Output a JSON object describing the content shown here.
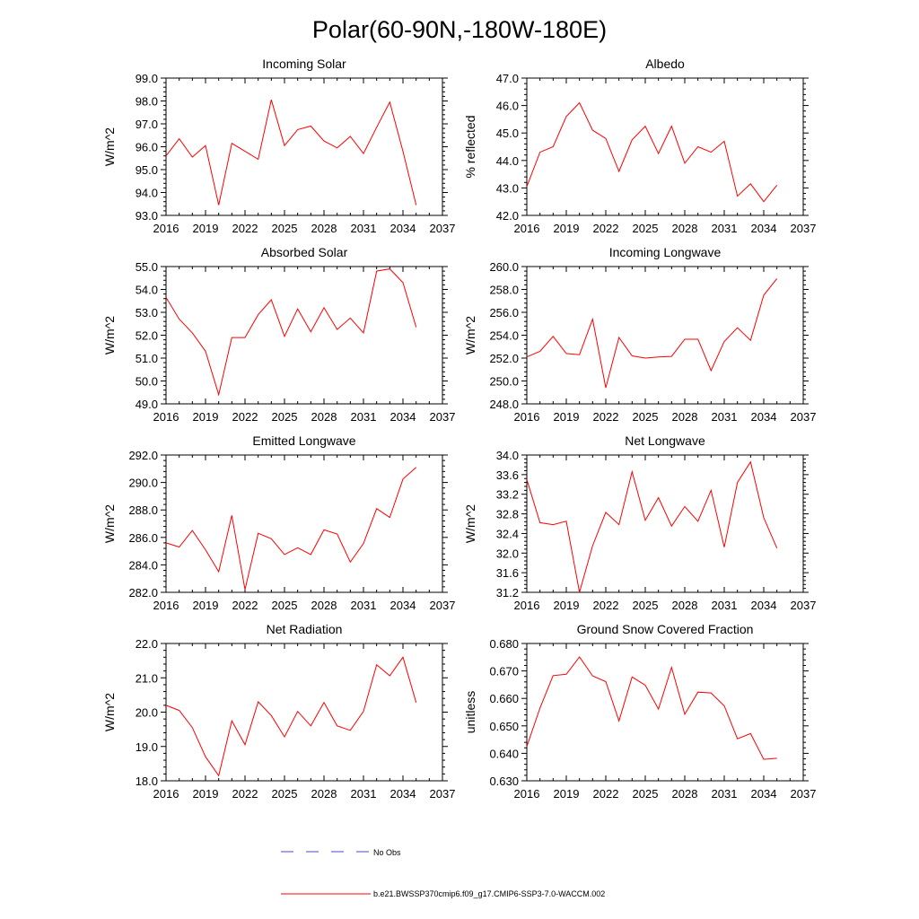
{
  "figure": {
    "title": "Polar(60-90N,-180W-180E)",
    "legend": [
      {
        "label": "No Obs",
        "color": "#4a4acc",
        "style": "dashed"
      },
      {
        "label": "b.e21.BWSSP370cmip6.f09_g17.CMIP6-SSP3-7.0-WACCM.002",
        "color": "#ff0000",
        "style": "solid"
      }
    ]
  },
  "chart_data": [
    {
      "type": "line",
      "title": "Incoming Solar",
      "xlabel": "",
      "ylabel": "W/m^2",
      "xlim": [
        2016,
        2037
      ],
      "ylim": [
        93.0,
        99.0
      ],
      "xticks": [
        2016,
        2019,
        2022,
        2025,
        2028,
        2031,
        2034,
        2037
      ],
      "yticks": [
        "93.0",
        "94.0",
        "95.0",
        "96.0",
        "97.0",
        "98.0",
        "99.0"
      ],
      "series": [
        {
          "name": "b.e21.BWSSP370cmip6.f09_g17.CMIP6-SSP3-7.0-WACCM.002",
          "color": "#ff0000",
          "x": [
            2016,
            2017,
            2018,
            2019,
            2020,
            2021,
            2022,
            2023,
            2024,
            2025,
            2026,
            2027,
            2028,
            2029,
            2030,
            2031,
            2032,
            2033,
            2034,
            2035
          ],
          "y": [
            95.6,
            96.35,
            95.55,
            96.05,
            93.45,
            96.15,
            95.8,
            95.45,
            98.05,
            96.05,
            96.75,
            96.9,
            96.25,
            95.95,
            96.45,
            95.7,
            96.85,
            97.95,
            95.8,
            93.45
          ]
        }
      ]
    },
    {
      "type": "line",
      "title": "Albedo",
      "xlabel": "",
      "ylabel": "% reflected",
      "xlim": [
        2016,
        2037
      ],
      "ylim": [
        42.0,
        47.0
      ],
      "xticks": [
        2016,
        2019,
        2022,
        2025,
        2028,
        2031,
        2034,
        2037
      ],
      "yticks": [
        "42.0",
        "43.0",
        "44.0",
        "45.0",
        "46.0",
        "47.0"
      ],
      "series": [
        {
          "name": "b.e21.BWSSP370cmip6.f09_g17.CMIP6-SSP3-7.0-WACCM.002",
          "color": "#ff0000",
          "x": [
            2016,
            2017,
            2018,
            2019,
            2020,
            2021,
            2022,
            2023,
            2024,
            2025,
            2026,
            2027,
            2028,
            2029,
            2030,
            2031,
            2032,
            2033,
            2034,
            2035
          ],
          "y": [
            43.05,
            44.3,
            44.5,
            45.6,
            46.1,
            45.1,
            44.8,
            43.6,
            44.75,
            45.25,
            44.25,
            45.25,
            43.9,
            44.5,
            44.3,
            44.7,
            42.7,
            43.15,
            42.5,
            43.1
          ]
        }
      ]
    },
    {
      "type": "line",
      "title": "Absorbed Solar",
      "xlabel": "",
      "ylabel": "W/m^2",
      "xlim": [
        2016,
        2037
      ],
      "ylim": [
        49.0,
        55.0
      ],
      "xticks": [
        2016,
        2019,
        2022,
        2025,
        2028,
        2031,
        2034,
        2037
      ],
      "yticks": [
        "49.0",
        "50.0",
        "51.0",
        "52.0",
        "53.0",
        "54.0",
        "55.0"
      ],
      "series": [
        {
          "name": "b.e21.BWSSP370cmip6.f09_g17.CMIP6-SSP3-7.0-WACCM.002",
          "color": "#ff0000",
          "x": [
            2016,
            2017,
            2018,
            2019,
            2020,
            2021,
            2022,
            2023,
            2024,
            2025,
            2026,
            2027,
            2028,
            2029,
            2030,
            2031,
            2032,
            2033,
            2034,
            2035
          ],
          "y": [
            53.65,
            52.7,
            52.1,
            51.3,
            49.4,
            51.9,
            51.9,
            52.9,
            53.55,
            51.95,
            53.15,
            52.15,
            53.2,
            52.25,
            52.75,
            52.1,
            54.8,
            54.9,
            54.3,
            52.35
          ]
        }
      ]
    },
    {
      "type": "line",
      "title": "Incoming Longwave",
      "xlabel": "",
      "ylabel": "W/m^2",
      "xlim": [
        2016,
        2037
      ],
      "ylim": [
        248.0,
        260.0
      ],
      "xticks": [
        2016,
        2019,
        2022,
        2025,
        2028,
        2031,
        2034,
        2037
      ],
      "yticks": [
        "248.0",
        "250.0",
        "252.0",
        "254.0",
        "256.0",
        "258.0",
        "260.0"
      ],
      "series": [
        {
          "name": "b.e21.BWSSP370cmip6.f09_g17.CMIP6-SSP3-7.0-WACCM.002",
          "color": "#ff0000",
          "x": [
            2016,
            2017,
            2018,
            2019,
            2020,
            2021,
            2022,
            2023,
            2024,
            2025,
            2026,
            2027,
            2028,
            2029,
            2030,
            2031,
            2032,
            2033,
            2034,
            2035
          ],
          "y": [
            252.1,
            252.6,
            253.9,
            252.4,
            252.3,
            255.4,
            249.4,
            253.8,
            252.2,
            252.0,
            252.1,
            252.15,
            253.65,
            253.65,
            250.9,
            253.45,
            254.65,
            253.55,
            257.5,
            258.95
          ]
        }
      ]
    },
    {
      "type": "line",
      "title": "Emitted Longwave",
      "xlabel": "",
      "ylabel": "W/m^2",
      "xlim": [
        2016,
        2037
      ],
      "ylim": [
        282.0,
        292.0
      ],
      "xticks": [
        2016,
        2019,
        2022,
        2025,
        2028,
        2031,
        2034,
        2037
      ],
      "yticks": [
        "282.0",
        "284.0",
        "286.0",
        "288.0",
        "290.0",
        "292.0"
      ],
      "series": [
        {
          "name": "b.e21.BWSSP370cmip6.f09_g17.CMIP6-SSP3-7.0-WACCM.002",
          "color": "#ff0000",
          "x": [
            2016,
            2017,
            2018,
            2019,
            2020,
            2021,
            2022,
            2023,
            2024,
            2025,
            2026,
            2027,
            2028,
            2029,
            2030,
            2031,
            2032,
            2033,
            2034,
            2035
          ],
          "y": [
            285.6,
            285.3,
            286.5,
            285.1,
            283.5,
            287.6,
            282.2,
            286.3,
            285.9,
            284.75,
            285.25,
            284.75,
            286.55,
            286.25,
            284.2,
            285.55,
            288.1,
            287.45,
            290.25,
            291.1
          ]
        }
      ]
    },
    {
      "type": "line",
      "title": "Net Longwave",
      "xlabel": "",
      "ylabel": "W/m^2",
      "xlim": [
        2016,
        2037
      ],
      "ylim": [
        31.2,
        34.0
      ],
      "xticks": [
        2016,
        2019,
        2022,
        2025,
        2028,
        2031,
        2034,
        2037
      ],
      "yticks": [
        "31.2",
        "31.6",
        "32.0",
        "32.4",
        "32.8",
        "33.2",
        "33.6",
        "34.0"
      ],
      "series": [
        {
          "name": "b.e21.BWSSP370cmip6.f09_g17.CMIP6-SSP3-7.0-WACCM.002",
          "color": "#ff0000",
          "x": [
            2016,
            2017,
            2018,
            2019,
            2020,
            2021,
            2022,
            2023,
            2024,
            2025,
            2026,
            2027,
            2028,
            2029,
            2030,
            2031,
            2032,
            2033,
            2034,
            2035
          ],
          "y": [
            33.5,
            32.62,
            32.58,
            32.65,
            31.2,
            32.15,
            32.83,
            32.58,
            33.66,
            32.67,
            33.13,
            32.55,
            32.95,
            32.65,
            33.28,
            32.12,
            33.44,
            33.86,
            32.72,
            32.1
          ]
        }
      ]
    },
    {
      "type": "line",
      "title": "Net Radiation",
      "xlabel": "",
      "ylabel": "W/m^2",
      "xlim": [
        2016,
        2037
      ],
      "ylim": [
        18.0,
        22.0
      ],
      "xticks": [
        2016,
        2019,
        2022,
        2025,
        2028,
        2031,
        2034,
        2037
      ],
      "yticks": [
        "18.0",
        "19.0",
        "20.0",
        "21.0",
        "22.0"
      ],
      "series": [
        {
          "name": "b.e21.BWSSP370cmip6.f09_g17.CMIP6-SSP3-7.0-WACCM.002",
          "color": "#ff0000",
          "x": [
            2016,
            2017,
            2018,
            2019,
            2020,
            2021,
            2022,
            2023,
            2024,
            2025,
            2026,
            2027,
            2028,
            2029,
            2030,
            2031,
            2032,
            2033,
            2034,
            2035
          ],
          "y": [
            20.2,
            20.05,
            19.55,
            18.7,
            18.15,
            19.75,
            19.05,
            20.3,
            19.9,
            19.28,
            20.02,
            19.6,
            20.28,
            19.6,
            19.47,
            20.02,
            21.38,
            21.06,
            21.6,
            20.28
          ]
        }
      ]
    },
    {
      "type": "line",
      "title": "Ground Snow Covered Fraction",
      "xlabel": "",
      "ylabel": "unitless",
      "xlim": [
        2016,
        2037
      ],
      "ylim": [
        0.63,
        0.68
      ],
      "xticks": [
        2016,
        2019,
        2022,
        2025,
        2028,
        2031,
        2034,
        2037
      ],
      "yticks": [
        "0.630",
        "0.640",
        "0.650",
        "0.660",
        "0.670",
        "0.680"
      ],
      "series": [
        {
          "name": "b.e21.BWSSP370cmip6.f09_g17.CMIP6-SSP3-7.0-WACCM.002",
          "color": "#ff0000",
          "x": [
            2016,
            2017,
            2018,
            2019,
            2020,
            2021,
            2022,
            2023,
            2024,
            2025,
            2026,
            2027,
            2028,
            2029,
            2030,
            2031,
            2032,
            2033,
            2034,
            2035
          ],
          "y": [
            0.6425,
            0.6565,
            0.6683,
            0.6688,
            0.6751,
            0.6682,
            0.6661,
            0.6518,
            0.6678,
            0.6648,
            0.6561,
            0.6713,
            0.6542,
            0.6623,
            0.662,
            0.6573,
            0.6453,
            0.6472,
            0.6378,
            0.6382
          ]
        }
      ]
    }
  ]
}
